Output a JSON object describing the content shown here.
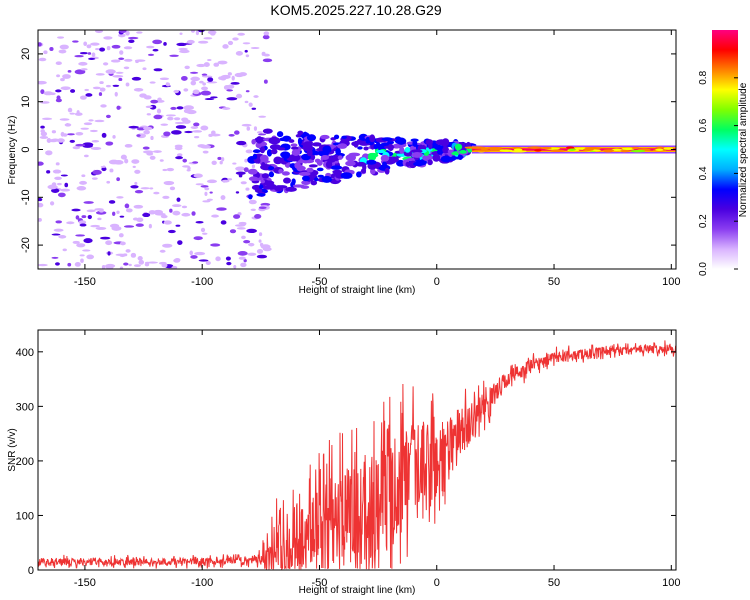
{
  "title": "KOM5.2025.227.10.28.G29",
  "chart_data": [
    {
      "type": "heatmap",
      "title": "KOM5.2025.227.10.28.G29",
      "xlabel": "Height of straight line (km)",
      "ylabel": "Frequency (Hz)",
      "xlim": [
        -170,
        102
      ],
      "ylim": [
        -25,
        25
      ],
      "xticks": [
        -150,
        -100,
        -50,
        0,
        50,
        100
      ],
      "yticks": [
        -20,
        -10,
        0,
        10,
        20
      ],
      "colorbar": {
        "label": "Normalized spectral amplitude",
        "ticks": [
          "0.0",
          "0.2",
          "0.4",
          "0.6",
          "0.8"
        ],
        "range": [
          0,
          1
        ],
        "colors": [
          "#ffffff",
          "#d9b3ff",
          "#8a3df0",
          "#4a00e0",
          "#0000ff",
          "#00b0ff",
          "#00ffff",
          "#00ff60",
          "#80ff00",
          "#ffff00",
          "#ff8000",
          "#ff0000",
          "#ff0080"
        ]
      },
      "regions": [
        {
          "name": "noise",
          "x_range": [
            -170,
            -80
          ],
          "y_range": [
            -25,
            25
          ],
          "amplitude": 0.08
        },
        {
          "name": "transition",
          "x_range": [
            -80,
            15
          ],
          "y_center": 0,
          "amplitude": 0.25
        },
        {
          "name": "carrier",
          "x_range": [
            15,
            102
          ],
          "y_center": 0,
          "amplitude": 0.95
        }
      ]
    },
    {
      "type": "line",
      "xlabel": "Height of straight line (km)",
      "ylabel": "SNR (v/v)",
      "xlim": [
        -170,
        102
      ],
      "ylim": [
        0,
        440
      ],
      "xticks": [
        -150,
        -100,
        -50,
        0,
        50,
        100
      ],
      "yticks": [
        0,
        100,
        200,
        300,
        400
      ],
      "series": [
        {
          "name": "SNR",
          "color": "#ee3333",
          "x": [
            -170,
            -150,
            -120,
            -100,
            -80,
            -75,
            -70,
            -60,
            -50,
            -40,
            -30,
            -20,
            -10,
            0,
            10,
            20,
            30,
            40,
            50,
            60,
            70,
            80,
            90,
            102
          ],
          "y": [
            15,
            15,
            15,
            15,
            18,
            20,
            40,
            60,
            80,
            100,
            110,
            150,
            170,
            200,
            250,
            300,
            350,
            375,
            390,
            395,
            400,
            402,
            405,
            405
          ],
          "noise": [
            8,
            8,
            8,
            8,
            8,
            15,
            60,
            80,
            90,
            110,
            130,
            140,
            120,
            100,
            60,
            30,
            20,
            15,
            12,
            12,
            10,
            10,
            10,
            10
          ]
        }
      ]
    }
  ]
}
